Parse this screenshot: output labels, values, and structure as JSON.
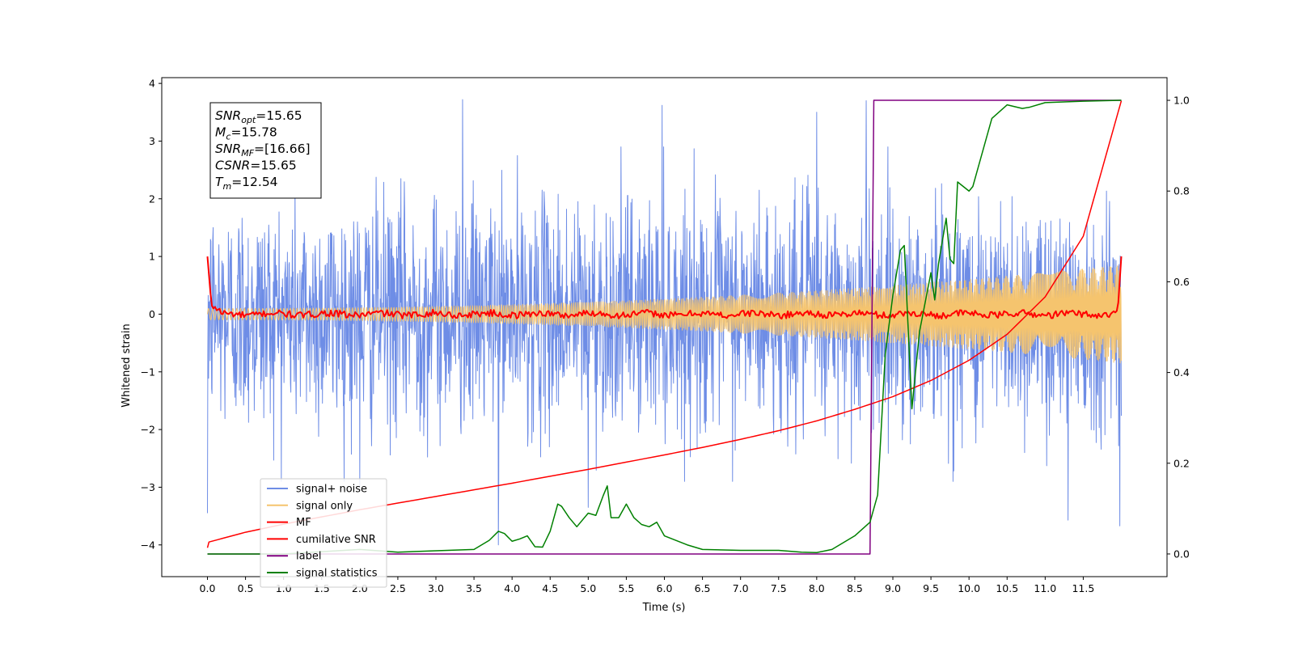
{
  "chart_data": {
    "type": "line",
    "xlabel": "Time (s)",
    "ylabel": "Whitened strain",
    "xlim": [
      -0.6,
      12.6
    ],
    "ylim": [
      -4.55,
      4.1
    ],
    "y2lim": [
      -0.05,
      1.05
    ],
    "x_ticks": [
      0.0,
      0.5,
      1.0,
      1.5,
      2.0,
      2.5,
      3.0,
      3.5,
      4.0,
      4.5,
      5.0,
      5.5,
      6.0,
      6.5,
      7.0,
      7.5,
      8.0,
      8.5,
      9.0,
      9.5,
      10.0,
      10.5,
      11.0,
      11.5
    ],
    "x_tick_labels": [
      "0.0",
      "0.5",
      "1.0",
      "1.5",
      "2.0",
      "2.5",
      "3.0",
      "3.5",
      "4.0",
      "4.5",
      "5.0",
      "5.5",
      "6.0",
      "6.5",
      "7.0",
      "7.5",
      "8.0",
      "8.5",
      "9.0",
      "9.5",
      "10.0",
      "10.5",
      "11.0",
      "11.5"
    ],
    "y_ticks": [
      -4,
      -3,
      -2,
      -1,
      0,
      1,
      2,
      3,
      4
    ],
    "y_tick_labels": [
      "−4",
      "−3",
      "−2",
      "−1",
      "0",
      "1",
      "2",
      "3",
      "4"
    ],
    "y2_ticks": [
      0.0,
      0.2,
      0.4,
      0.6,
      0.8,
      1.0
    ],
    "y2_tick_labels": [
      "0.0",
      "0.2",
      "0.4",
      "0.6",
      "0.8",
      "1.0"
    ],
    "grid": false,
    "legend_position": "lower-left",
    "annotation": {
      "lines": [
        {
          "var": "SNR",
          "sub": "opt",
          "val": "=15.65"
        },
        {
          "var": "M",
          "sub": "c",
          "val": "=15.78"
        },
        {
          "var": "SNR",
          "sub": "MF",
          "val": "=[16.66]"
        },
        {
          "var": "CSNR",
          "sub": "",
          "val": "=15.65"
        },
        {
          "var": "T",
          "sub": "m",
          "val": "=12.54"
        }
      ]
    },
    "series": [
      {
        "name": "signal+ noise",
        "color": "#6e8de6",
        "axis": "left",
        "kind": "noise",
        "x_range": [
          0.0,
          12.0
        ],
        "amplitude": 1.2,
        "spikes": [
          [
            0.0,
            -3.45
          ],
          [
            3.82,
            -4.0
          ],
          [
            3.35,
            3.72
          ],
          [
            5.0,
            -3.35
          ],
          [
            5.97,
            3.62
          ],
          [
            8.65,
            3.7
          ],
          [
            11.98,
            -3.67
          ],
          [
            11.3,
            -3.57
          ],
          [
            8.0,
            3.5
          ],
          [
            2.0,
            -3.0
          ]
        ]
      },
      {
        "name": "signal only",
        "color": "#f5c46e",
        "axis": "left",
        "kind": "chirp",
        "x_range": [
          0.0,
          12.0
        ],
        "amplitude_start": 0.1,
        "amplitude_end": 0.85
      },
      {
        "name": "MF",
        "color": "#ff0000",
        "axis": "left",
        "kind": "mf",
        "x_range": [
          0.0,
          12.0
        ],
        "start_value": 1.0,
        "end_value": 1.0,
        "ripple": 0.06
      },
      {
        "name": "cumilative SNR",
        "color": "#ff0000",
        "axis": "left",
        "x": [
          0.0,
          0.02,
          0.5,
          1.0,
          2.0,
          3.0,
          4.0,
          5.0,
          6.0,
          6.5,
          7.0,
          7.5,
          8.0,
          8.5,
          9.0,
          9.5,
          10.0,
          10.5,
          11.0,
          11.5,
          12.0
        ],
        "y": [
          -4.05,
          -3.95,
          -3.78,
          -3.64,
          -3.39,
          -3.16,
          -2.93,
          -2.69,
          -2.44,
          -2.31,
          -2.17,
          -2.02,
          -1.85,
          -1.65,
          -1.43,
          -1.15,
          -0.8,
          -0.35,
          0.3,
          1.35,
          3.7
        ]
      },
      {
        "name": "label",
        "color": "#800080",
        "axis": "right",
        "x": [
          0.0,
          8.7,
          8.75,
          12.0
        ],
        "y": [
          0.0,
          0.0,
          1.0,
          1.0
        ]
      },
      {
        "name": "signal statistics",
        "color": "#008000",
        "axis": "right",
        "x": [
          0.0,
          0.5,
          1.0,
          1.5,
          2.0,
          2.5,
          3.0,
          3.5,
          3.7,
          3.82,
          3.9,
          4.0,
          4.1,
          4.2,
          4.3,
          4.4,
          4.5,
          4.6,
          4.65,
          4.75,
          4.85,
          5.0,
          5.1,
          5.2,
          5.25,
          5.3,
          5.4,
          5.5,
          5.6,
          5.7,
          5.8,
          5.9,
          6.0,
          6.3,
          6.5,
          7.0,
          7.5,
          7.8,
          8.0,
          8.2,
          8.5,
          8.7,
          8.8,
          8.9,
          9.0,
          9.1,
          9.15,
          9.25,
          9.35,
          9.5,
          9.55,
          9.6,
          9.7,
          9.75,
          9.8,
          9.85,
          10.0,
          10.05,
          10.1,
          10.3,
          10.5,
          10.7,
          10.8,
          11.0,
          11.5,
          12.0
        ],
        "y": [
          0.0,
          0.0,
          0.0,
          0.005,
          0.01,
          0.004,
          0.007,
          0.01,
          0.03,
          0.05,
          0.045,
          0.028,
          0.033,
          0.04,
          0.016,
          0.015,
          0.05,
          0.11,
          0.105,
          0.08,
          0.06,
          0.09,
          0.085,
          0.13,
          0.15,
          0.08,
          0.08,
          0.11,
          0.08,
          0.065,
          0.06,
          0.07,
          0.04,
          0.02,
          0.01,
          0.008,
          0.008,
          0.004,
          0.003,
          0.01,
          0.04,
          0.07,
          0.13,
          0.44,
          0.57,
          0.67,
          0.68,
          0.32,
          0.49,
          0.62,
          0.56,
          0.64,
          0.74,
          0.65,
          0.64,
          0.82,
          0.8,
          0.81,
          0.84,
          0.96,
          0.99,
          0.982,
          0.985,
          0.995,
          0.998,
          1.0
        ]
      }
    ]
  }
}
